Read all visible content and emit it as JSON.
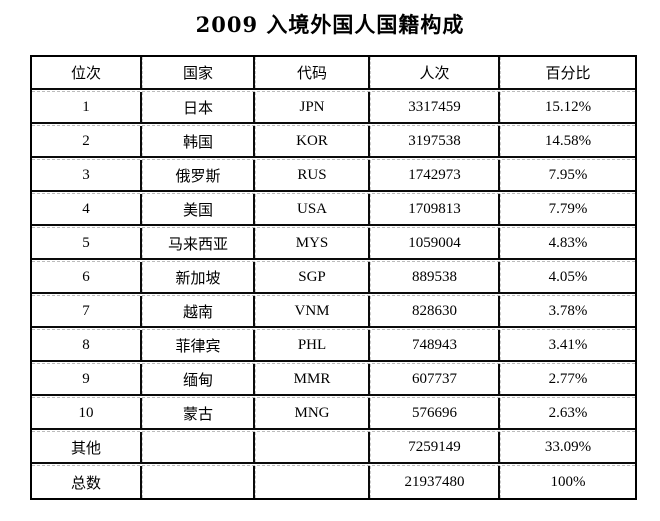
{
  "chart_data": {
    "type": "table",
    "title": "2009 入境外国人国籍构成",
    "columns": [
      "位次",
      "国家",
      "代码",
      "人次",
      "百分比"
    ],
    "rows": [
      [
        "1",
        "日本",
        "JPN",
        "3317459",
        "15.12%"
      ],
      [
        "2",
        "韩国",
        "KOR",
        "3197538",
        "14.58%"
      ],
      [
        "3",
        "俄罗斯",
        "RUS",
        "1742973",
        "7.95%"
      ],
      [
        "4",
        "美国",
        "USA",
        "1709813",
        "7.79%"
      ],
      [
        "5",
        "马来西亚",
        "MYS",
        "1059004",
        "4.83%"
      ],
      [
        "6",
        "新加坡",
        "SGP",
        "889538",
        "4.05%"
      ],
      [
        "7",
        "越南",
        "VNM",
        "828630",
        "3.78%"
      ],
      [
        "8",
        "菲律宾",
        "PHL",
        "748943",
        "3.41%"
      ],
      [
        "9",
        "缅甸",
        "MMR",
        "607737",
        "2.77%"
      ],
      [
        "10",
        "蒙古",
        "MNG",
        "576696",
        "2.63%"
      ],
      [
        "其他",
        "",
        "",
        "7259149",
        "33.09%"
      ],
      [
        "总数",
        "",
        "",
        "21937480",
        "100%"
      ]
    ]
  },
  "colors": {
    "text": "#000000",
    "border": "#000000",
    "gridline_dashed": "#bcbcbc",
    "background": "#ffffff"
  }
}
